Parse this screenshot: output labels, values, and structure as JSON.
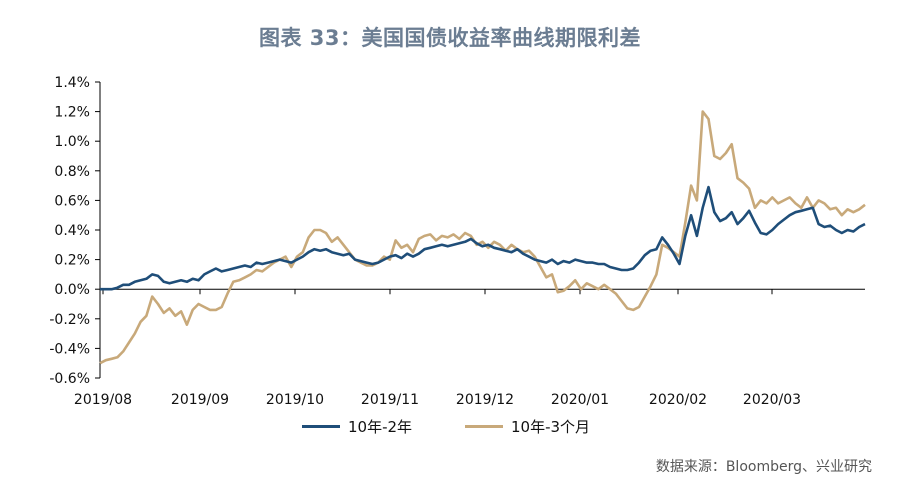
{
  "title": "图表 33：美国国债收益率曲线期限利差",
  "source": "数据来源：Bloomberg、兴业研究",
  "colors": {
    "series1": "#1f4e79",
    "series2": "#c8a97a",
    "axis": "#000000"
  },
  "chart_data": {
    "type": "line",
    "title": "图表 33：美国国债收益率曲线期限利差",
    "xlabel": "",
    "ylabel": "",
    "ylim": [
      -0.6,
      1.4
    ],
    "y_ticks": [
      "1.4%",
      "1.2%",
      "1.0%",
      "0.8%",
      "0.6%",
      "0.4%",
      "0.2%",
      "0.0%",
      "-0.2%",
      "-0.4%",
      "-0.6%"
    ],
    "x_ticks": [
      "2019/08",
      "2019/09",
      "2019/10",
      "2019/11",
      "2019/12",
      "2020/01",
      "2020/02",
      "2020/03"
    ],
    "legend_position": "bottom",
    "grid": false,
    "series": [
      {
        "name": "10年-2年",
        "values": [
          0.0,
          0.0,
          0.0,
          0.01,
          0.03,
          0.03,
          0.05,
          0.06,
          0.07,
          0.1,
          0.09,
          0.05,
          0.04,
          0.05,
          0.06,
          0.05,
          0.07,
          0.06,
          0.1,
          0.12,
          0.14,
          0.12,
          0.13,
          0.14,
          0.15,
          0.16,
          0.15,
          0.18,
          0.17,
          0.18,
          0.19,
          0.2,
          0.19,
          0.18,
          0.2,
          0.22,
          0.25,
          0.27,
          0.26,
          0.27,
          0.25,
          0.24,
          0.23,
          0.24,
          0.2,
          0.19,
          0.18,
          0.17,
          0.18,
          0.2,
          0.22,
          0.23,
          0.21,
          0.24,
          0.22,
          0.24,
          0.27,
          0.28,
          0.29,
          0.3,
          0.29,
          0.3,
          0.31,
          0.32,
          0.34,
          0.31,
          0.29,
          0.3,
          0.28,
          0.27,
          0.26,
          0.25,
          0.27,
          0.24,
          0.22,
          0.2,
          0.19,
          0.18,
          0.2,
          0.17,
          0.19,
          0.18,
          0.2,
          0.19,
          0.18,
          0.18,
          0.17,
          0.17,
          0.15,
          0.14,
          0.13,
          0.13,
          0.14,
          0.18,
          0.23,
          0.26,
          0.27,
          0.35,
          0.3,
          0.24,
          0.17,
          0.36,
          0.5,
          0.36,
          0.55,
          0.69,
          0.52,
          0.46,
          0.48,
          0.52,
          0.44,
          0.48,
          0.53,
          0.45,
          0.38,
          0.37,
          0.4,
          0.44,
          0.47,
          0.5,
          0.52,
          0.53,
          0.54,
          0.55,
          0.44,
          0.42,
          0.43,
          0.4,
          0.38,
          0.4,
          0.39,
          0.42,
          0.44
        ]
      },
      {
        "name": "10年-3个月",
        "values": [
          -0.5,
          -0.48,
          -0.47,
          -0.46,
          -0.42,
          -0.36,
          -0.3,
          -0.22,
          -0.18,
          -0.05,
          -0.1,
          -0.16,
          -0.13,
          -0.18,
          -0.15,
          -0.24,
          -0.14,
          -0.1,
          -0.12,
          -0.14,
          -0.14,
          -0.12,
          -0.03,
          0.05,
          0.06,
          0.08,
          0.1,
          0.13,
          0.12,
          0.15,
          0.18,
          0.2,
          0.22,
          0.15,
          0.22,
          0.25,
          0.35,
          0.4,
          0.4,
          0.38,
          0.32,
          0.35,
          0.3,
          0.25,
          0.2,
          0.18,
          0.16,
          0.16,
          0.18,
          0.22,
          0.2,
          0.33,
          0.28,
          0.3,
          0.25,
          0.34,
          0.36,
          0.37,
          0.33,
          0.36,
          0.35,
          0.37,
          0.34,
          0.38,
          0.36,
          0.3,
          0.32,
          0.28,
          0.32,
          0.3,
          0.26,
          0.3,
          0.27,
          0.25,
          0.26,
          0.22,
          0.15,
          0.08,
          0.1,
          -0.02,
          -0.01,
          0.02,
          0.06,
          0.0,
          0.04,
          0.02,
          0.0,
          0.03,
          0.0,
          -0.03,
          -0.08,
          -0.13,
          -0.14,
          -0.12,
          -0.05,
          0.02,
          0.1,
          0.3,
          0.28,
          0.25,
          0.22,
          0.45,
          0.7,
          0.6,
          1.2,
          1.15,
          0.9,
          0.88,
          0.92,
          0.98,
          0.75,
          0.72,
          0.68,
          0.55,
          0.6,
          0.58,
          0.62,
          0.58,
          0.6,
          0.62,
          0.58,
          0.55,
          0.62,
          0.55,
          0.6,
          0.58,
          0.54,
          0.55,
          0.5,
          0.54,
          0.52,
          0.54,
          0.57
        ]
      }
    ]
  }
}
